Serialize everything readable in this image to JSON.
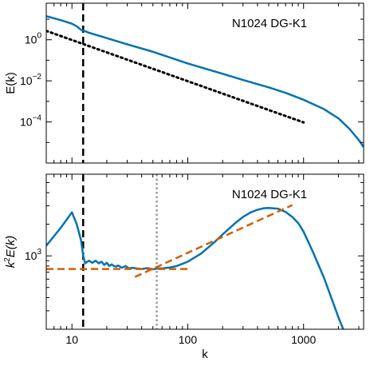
{
  "chart_data": [
    {
      "type": "line",
      "annotation": "N1024 DG-K1",
      "xlabel": "",
      "ylabel": "E(k)",
      "xscale": "log",
      "yscale": "log",
      "xlim": [
        6,
        3300
      ],
      "ylim": [
        1e-06,
        60
      ],
      "yticks": [
        {
          "value": 1,
          "base": "10",
          "exp": "0"
        },
        {
          "value": 0.01,
          "base": "10",
          "exp": "−2"
        },
        {
          "value": 0.0001,
          "base": "10",
          "exp": "−4"
        }
      ],
      "series": [
        {
          "style": "solid",
          "color": "#0072b2",
          "x": [
            6,
            8,
            10,
            11,
            12,
            13,
            14,
            20,
            30,
            50,
            100,
            200,
            300,
            500,
            700,
            1000,
            1500,
            2000,
            2500,
            3000,
            3300
          ],
          "y": [
            14,
            9,
            6,
            4.5,
            3,
            2.6,
            2.2,
            1.2,
            0.6,
            0.26,
            0.07,
            0.022,
            0.011,
            0.0048,
            0.0026,
            0.0012,
            0.00042,
            0.00015,
            4.5e-05,
            1.3e-05,
            6e-06
          ]
        },
        {
          "style": "dotted",
          "color": "#000000",
          "x": [
            6,
            1000
          ],
          "y": [
            2.7,
            9.5e-05
          ]
        }
      ],
      "vlines": [
        {
          "x": 12.5,
          "style": "dashed",
          "color": "#000000"
        }
      ]
    },
    {
      "type": "line",
      "annotation": "N1024 DG-K1",
      "xlabel": "k",
      "ylabel": "k²E(k)",
      "ylabel_parts": {
        "k": "k",
        "exp": "2",
        "rest": "E(k)"
      },
      "xscale": "log",
      "yscale": "log",
      "xlim": [
        6,
        3300
      ],
      "ylim": [
        200,
        6000
      ],
      "xticks": [
        {
          "value": 10,
          "label": "10"
        },
        {
          "value": 100,
          "label": "100"
        },
        {
          "value": 1000,
          "label": "1000"
        }
      ],
      "yticks": [
        {
          "value": 1000,
          "base": "10",
          "exp": "3"
        }
      ],
      "series": [
        {
          "style": "solid",
          "color": "#0072b2",
          "x": [
            6,
            8,
            10,
            11,
            12,
            12.5,
            13,
            14,
            15,
            16,
            17,
            18,
            19,
            20,
            21,
            22,
            23,
            24,
            25,
            27,
            29,
            31,
            33,
            36,
            40,
            45,
            50,
            55,
            60,
            70,
            80,
            100,
            130,
            170,
            200,
            250,
            300,
            350,
            400,
            450,
            500,
            600,
            700,
            800,
            900,
            1000,
            1200,
            1500,
            2000,
            2200
          ],
          "y": [
            1250,
            1850,
            2600,
            2000,
            1400,
            1000,
            850,
            900,
            860,
            900,
            850,
            880,
            820,
            860,
            800,
            830,
            800,
            790,
            810,
            770,
            800,
            760,
            770,
            760,
            750,
            765,
            745,
            760,
            760,
            775,
            800,
            880,
            1050,
            1350,
            1600,
            2000,
            2350,
            2600,
            2750,
            2840,
            2860,
            2820,
            2620,
            2350,
            2050,
            1700,
            1100,
            620,
            260,
            200
          ]
        },
        {
          "style": "dashed",
          "color": "#d55e00",
          "x": [
            6,
            100
          ],
          "y": [
            750,
            750
          ]
        },
        {
          "style": "dashed",
          "color": "#d55e00",
          "x": [
            35,
            800
          ],
          "y": [
            630,
            3050
          ]
        }
      ],
      "vlines": [
        {
          "x": 12.5,
          "style": "dashed",
          "color": "#000000"
        },
        {
          "x": 54,
          "style": "dotted",
          "color": "#999999"
        }
      ]
    }
  ]
}
